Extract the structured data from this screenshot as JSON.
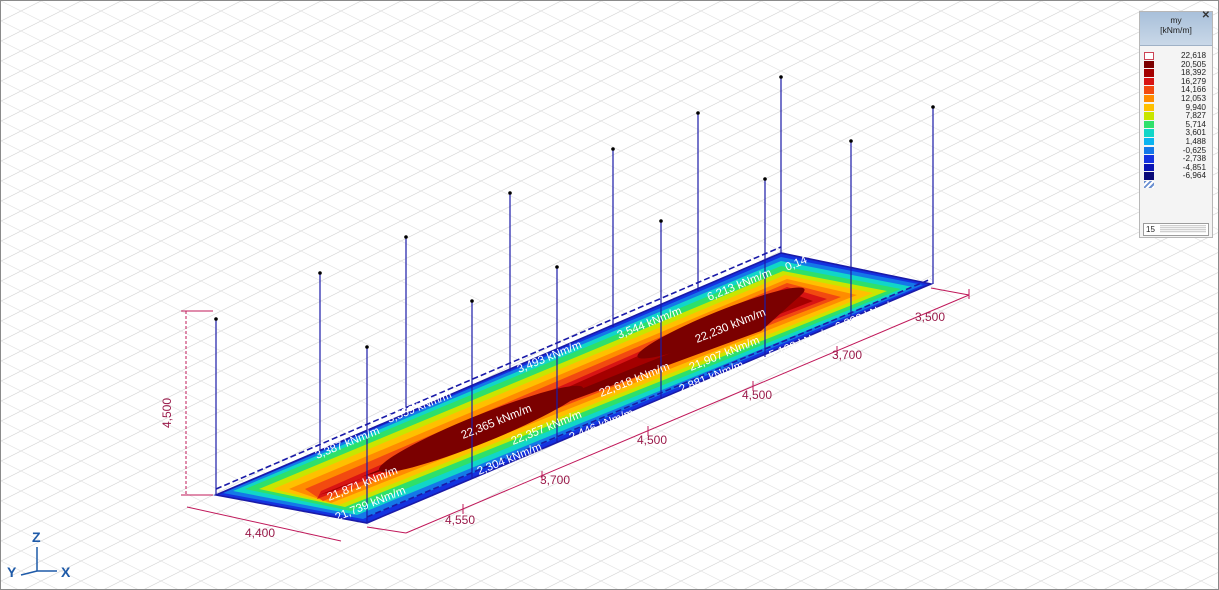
{
  "title_strip": "",
  "dimensions": {
    "height": "4,500",
    "width_left": "4,400",
    "width_right": "3,500",
    "spans_front": [
      "4,550",
      "3,700",
      "4,500",
      "4,500",
      "3,700"
    ]
  },
  "result_labels": [
    "3,387 kNm/m",
    "3,359 kNm/m",
    "3,493 kNm/m",
    "3,544 kNm/m",
    "6,213 kNm/m",
    "0,14",
    "22,365 kNm/m",
    "22,618 kNm/m",
    "22,230 kNm/m",
    "21,871 kNm/m",
    "22,357 kNm/m",
    "21,907 kNm/m",
    "21,739 kNm/m",
    "2,304 kNm/m",
    "2,446 kNm/m",
    "2,881 kNm/m",
    "5,108 kNm/m",
    "6,290 kNm/m"
  ],
  "axes": {
    "z": "Z",
    "y": "Y",
    "x": "X"
  },
  "legend": {
    "title": "my",
    "unit": "[kNm/m]",
    "close": "✕",
    "values": [
      "22,618",
      "20,505",
      "18,392",
      "16,279",
      "14,166",
      "12,053",
      "9,940",
      "7,827",
      "5,714",
      "3,601",
      "1,488",
      "-0,625",
      "-2,738",
      "-4,851",
      "-6,964"
    ],
    "colors": [
      "#ffffff",
      "#7b0000",
      "#a40000",
      "#d81414",
      "#f24a10",
      "#ff8c00",
      "#ffc000",
      "#c8e600",
      "#2ee06a",
      "#11d6c8",
      "#0ab4f0",
      "#1478e8",
      "#1432e0",
      "#0a14b4",
      "#0a0a78",
      "#06063c"
    ],
    "steps": "15"
  }
}
